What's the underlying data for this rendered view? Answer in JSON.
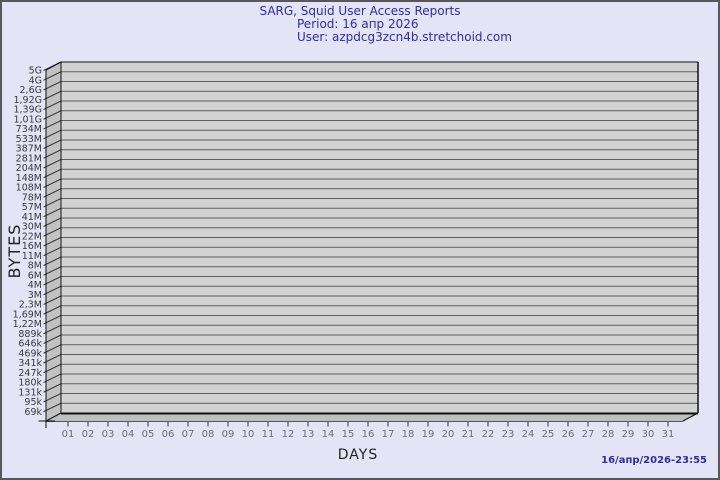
{
  "header": {
    "title": "SARG, Squid User Access Reports",
    "period": "Period: 16 апр 2026",
    "user": "User: azpdcg3zcn4b.stretchoid.com"
  },
  "footer": {
    "timestamp": "16/апр/2026-23:55"
  },
  "chart_data": {
    "type": "bar",
    "title": "SARG, Squid User Access Reports",
    "subtitle_period": "Period: 16 апр 2026",
    "subtitle_user": "User: azpdcg3zcn4b.stretchoid.com",
    "xlabel": "DAYS",
    "ylabel": "BYTES",
    "x_tick_labels": [
      "01",
      "02",
      "03",
      "04",
      "05",
      "06",
      "07",
      "08",
      "09",
      "10",
      "11",
      "12",
      "13",
      "14",
      "15",
      "16",
      "17",
      "18",
      "19",
      "20",
      "21",
      "22",
      "23",
      "24",
      "25",
      "26",
      "27",
      "28",
      "29",
      "30",
      "31"
    ],
    "y_tick_labels": [
      "5G",
      "4G",
      "2,6G",
      "1,92G",
      "1,39G",
      "1,01G",
      "734M",
      "533M",
      "387M",
      "281M",
      "204M",
      "148M",
      "108M",
      "78M",
      "57M",
      "41M",
      "30M",
      "22M",
      "16M",
      "11M",
      "8M",
      "6M",
      "4M",
      "3M",
      "2,3M",
      "1,69M",
      "1,22M",
      "889k",
      "646k",
      "469k",
      "341k",
      "247k",
      "180k",
      "131k",
      "95k",
      "69k"
    ],
    "y_scale": "log",
    "ylim": [
      "69k",
      "5G"
    ],
    "grid": true,
    "legend": "none",
    "series": [
      {
        "name": "bytes",
        "values": []
      }
    ]
  },
  "colors": {
    "background": "#e4e4f6",
    "frame_border": "#57575c",
    "plot_fill": "#d2d2d2",
    "wall_fill": "#c2c2c2",
    "floor_fill": "#bfbfbf",
    "gridline": "#5e5e5e",
    "outline": "#111111",
    "title_text": "#2e2e9e",
    "axis_text": "#3a3a3a",
    "day_label_text": "#6e6e6e"
  }
}
